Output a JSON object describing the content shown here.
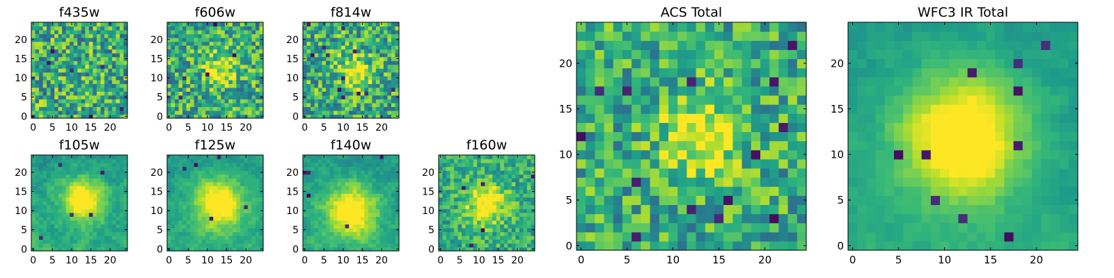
{
  "chart_data": [
    {
      "type": "heatmap",
      "title": "f435w",
      "x_ticks": [
        "0",
        "5",
        "10",
        "15",
        "20"
      ],
      "y_ticks": [
        "0",
        "5",
        "10",
        "15",
        "20"
      ],
      "xlim": [
        -0.5,
        24.5
      ],
      "ylim": [
        -0.5,
        24.5
      ],
      "grid_size": 25,
      "colormap": "viridis",
      "peak": [
        13,
        12
      ],
      "peak_strength": 0.02,
      "peak_width": 3.0,
      "noise": 0.32,
      "dark_pixels": 6,
      "seed": 11
    },
    {
      "type": "heatmap",
      "title": "f606w",
      "x_ticks": [
        "0",
        "5",
        "10",
        "15",
        "20"
      ],
      "y_ticks": [
        "0",
        "5",
        "10",
        "15",
        "20"
      ],
      "xlim": [
        -0.5,
        24.5
      ],
      "ylim": [
        -0.5,
        24.5
      ],
      "grid_size": 25,
      "colormap": "viridis",
      "peak": [
        13,
        12
      ],
      "peak_strength": 0.35,
      "peak_width": 3.0,
      "noise": 0.3,
      "dark_pixels": 5,
      "seed": 22
    },
    {
      "type": "heatmap",
      "title": "f814w",
      "x_ticks": [
        "0",
        "5",
        "10",
        "15",
        "20"
      ],
      "y_ticks": [
        "0",
        "5",
        "10",
        "15",
        "20"
      ],
      "xlim": [
        -0.5,
        24.5
      ],
      "ylim": [
        -0.5,
        24.5
      ],
      "grid_size": 25,
      "colormap": "viridis",
      "peak": [
        13,
        12
      ],
      "peak_strength": 0.4,
      "peak_width": 3.0,
      "noise": 0.3,
      "dark_pixels": 12,
      "seed": 33
    },
    {
      "type": "heatmap",
      "title": "f105w",
      "x_ticks": [
        "0",
        "5",
        "10",
        "15",
        "20"
      ],
      "y_ticks": [
        "0",
        "5",
        "10",
        "15",
        "20"
      ],
      "xlim": [
        -0.5,
        24.5
      ],
      "ylim": [
        -0.5,
        24.5
      ],
      "grid_size": 25,
      "colormap": "viridis",
      "peak": [
        13,
        13
      ],
      "peak_strength": 0.55,
      "peak_width": 4.0,
      "noise": 0.18,
      "dark_pixels": 5,
      "seed": 44
    },
    {
      "type": "heatmap",
      "title": "f125w",
      "x_ticks": [
        "0",
        "5",
        "10",
        "15",
        "20"
      ],
      "y_ticks": [
        "0",
        "5",
        "10",
        "15",
        "20"
      ],
      "xlim": [
        -0.5,
        24.5
      ],
      "ylim": [
        -0.5,
        24.5
      ],
      "grid_size": 25,
      "colormap": "viridis",
      "peak": [
        13,
        12
      ],
      "peak_strength": 0.55,
      "peak_width": 4.5,
      "noise": 0.16,
      "dark_pixels": 5,
      "seed": 55
    },
    {
      "type": "heatmap",
      "title": "f140w",
      "x_ticks": [
        "0",
        "5",
        "10",
        "15",
        "20"
      ],
      "y_ticks": [
        "0",
        "5",
        "10",
        "15",
        "20"
      ],
      "xlim": [
        -0.5,
        24.5
      ],
      "ylim": [
        -0.5,
        24.5
      ],
      "grid_size": 25,
      "colormap": "viridis",
      "peak": [
        12,
        10
      ],
      "peak_strength": 0.55,
      "peak_width": 4.5,
      "noise": 0.18,
      "dark_pixels": 5,
      "seed": 66
    },
    {
      "type": "heatmap",
      "title": "f160w",
      "x_ticks": [
        "0",
        "5",
        "10",
        "15",
        "20"
      ],
      "y_ticks": [
        "0",
        "5",
        "10",
        "15",
        "20"
      ],
      "xlim": [
        -0.5,
        24.5
      ],
      "ylim": [
        -0.5,
        24.5
      ],
      "grid_size": 25,
      "colormap": "viridis",
      "peak": [
        12,
        12
      ],
      "peak_strength": 0.5,
      "peak_width": 3.5,
      "noise": 0.2,
      "dark_pixels": 5,
      "seed": 77
    },
    {
      "type": "heatmap",
      "title": "ACS Total",
      "x_ticks": [
        "0",
        "5",
        "10",
        "15",
        "20"
      ],
      "y_ticks": [
        "0",
        "5",
        "10",
        "15",
        "20"
      ],
      "xlim": [
        -0.5,
        24.5
      ],
      "ylim": [
        -0.5,
        24.5
      ],
      "grid_size": 25,
      "colormap": "viridis",
      "peak": [
        13,
        12
      ],
      "peak_strength": 0.45,
      "peak_width": 3.0,
      "noise": 0.26,
      "dark_pixels": 14,
      "seed": 88
    },
    {
      "type": "heatmap",
      "title": "WFC3 IR Total",
      "x_ticks": [
        "0",
        "5",
        "10",
        "15",
        "20"
      ],
      "y_ticks": [
        "0",
        "5",
        "10",
        "15",
        "20"
      ],
      "xlim": [
        -0.5,
        24.5
      ],
      "ylim": [
        -0.5,
        24.5
      ],
      "grid_size": 25,
      "colormap": "viridis",
      "peak": [
        12,
        12
      ],
      "peak_strength": 0.6,
      "peak_width": 4.5,
      "noise": 0.1,
      "dark_pixels": 10,
      "seed": 99
    }
  ]
}
